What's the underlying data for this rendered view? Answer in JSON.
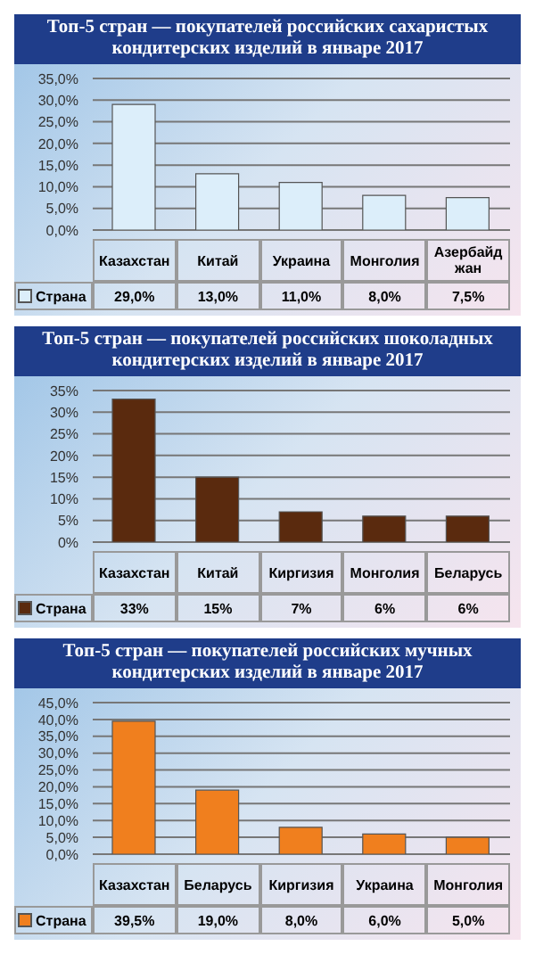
{
  "chart_data": [
    {
      "type": "bar",
      "title": "Топ-5 стран — покупателей российских сахаристых кондитерских изделий в январе 2017",
      "categories": [
        "Казахстан",
        "Китай",
        "Украина",
        "Монголия",
        "Азербайджан"
      ],
      "series": [
        {
          "name": "Страна",
          "color": "#dceefa",
          "values": [
            29.0,
            13.0,
            11.0,
            8.0,
            7.5
          ],
          "value_labels": [
            "29,0%",
            "13,0%",
            "11,0%",
            "8,0%",
            "7,5%"
          ]
        }
      ],
      "ylim": [
        0,
        35
      ],
      "yticks": [
        {
          "value": 0,
          "label": "0,0%"
        },
        {
          "value": 5,
          "label": "5,0%"
        },
        {
          "value": 10,
          "label": "10,0%"
        },
        {
          "value": 15,
          "label": "15,0%"
        },
        {
          "value": 20,
          "label": "20,0%"
        },
        {
          "value": 25,
          "label": "25,0%"
        },
        {
          "value": 30,
          "label": "30,0%"
        },
        {
          "value": 35,
          "label": "35,0%"
        }
      ],
      "grid": "y",
      "legend": "bottom"
    },
    {
      "type": "bar",
      "title": "Топ-5 стран — покупателей российских шоколадных кондитерских изделий в январе 2017",
      "categories": [
        "Казахстан",
        "Китай",
        "Киргизия",
        "Монголия",
        "Беларусь"
      ],
      "series": [
        {
          "name": "Страна",
          "color": "#5a2a0e",
          "values": [
            33,
            15,
            7,
            6,
            6
          ],
          "value_labels": [
            "33%",
            "15%",
            "7%",
            "6%",
            "6%"
          ]
        }
      ],
      "ylim": [
        0,
        35
      ],
      "yticks": [
        {
          "value": 0,
          "label": "0%"
        },
        {
          "value": 5,
          "label": "5%"
        },
        {
          "value": 10,
          "label": "10%"
        },
        {
          "value": 15,
          "label": "15%"
        },
        {
          "value": 20,
          "label": "20%"
        },
        {
          "value": 25,
          "label": "25%"
        },
        {
          "value": 30,
          "label": "30%"
        },
        {
          "value": 35,
          "label": "35%"
        }
      ],
      "grid": "y",
      "legend": "bottom"
    },
    {
      "type": "bar",
      "title": "Топ-5 стран — покупателей российских мучных кондитерских изделий в январе 2017",
      "categories": [
        "Казахстан",
        "Беларусь",
        "Киргизия",
        "Украина",
        "Монголия"
      ],
      "series": [
        {
          "name": "Страна",
          "color": "#f07f1e",
          "values": [
            39.5,
            19.0,
            8.0,
            6.0,
            5.0
          ],
          "value_labels": [
            "39,5%",
            "19,0%",
            "8,0%",
            "6,0%",
            "5,0%"
          ]
        }
      ],
      "ylim": [
        0,
        45
      ],
      "yticks": [
        {
          "value": 0,
          "label": "0,0%"
        },
        {
          "value": 5,
          "label": "5,0%"
        },
        {
          "value": 10,
          "label": "10,0%"
        },
        {
          "value": 15,
          "label": "15,0%"
        },
        {
          "value": 20,
          "label": "20,0%"
        },
        {
          "value": 25,
          "label": "25,0%"
        },
        {
          "value": 30,
          "label": "30,0%"
        },
        {
          "value": 35,
          "label": "35,0%"
        },
        {
          "value": 40,
          "label": "40,0%"
        },
        {
          "value": 45,
          "label": "45,0%"
        }
      ],
      "grid": "y",
      "legend": "bottom"
    }
  ]
}
